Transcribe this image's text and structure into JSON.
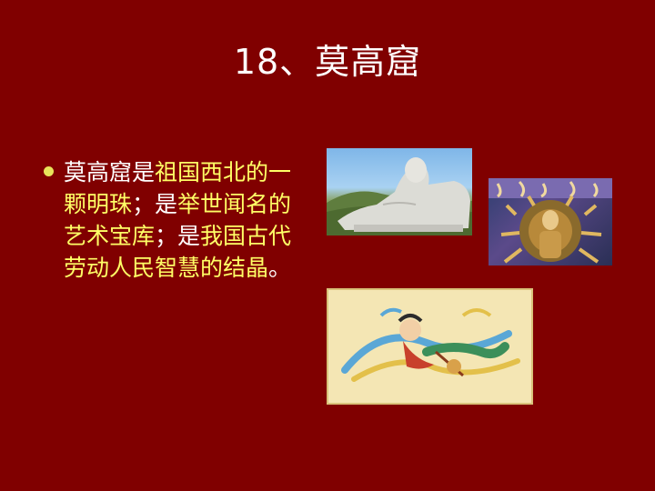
{
  "slide": {
    "title": "18、莫高窟",
    "bullet": {
      "white_1": "莫高窟是",
      "yellow_1": "祖国西北的一颗明珠",
      "white_2": "；是",
      "yellow_2": "举世闻名的艺术宝库",
      "white_3": "；是",
      "yellow_3": "我国古代劳动人民智慧的结晶",
      "white_4": "。"
    },
    "images": [
      {
        "name": "reclining-buddha-statue"
      },
      {
        "name": "thousand-armed-guanyin-mural"
      },
      {
        "name": "flying-apsara-painting"
      }
    ],
    "colors": {
      "background": "#800000",
      "title": "#ffffff",
      "body_text": "#ffffff",
      "highlight_text": "#ffff66",
      "bullet": "#e8e35a"
    }
  }
}
